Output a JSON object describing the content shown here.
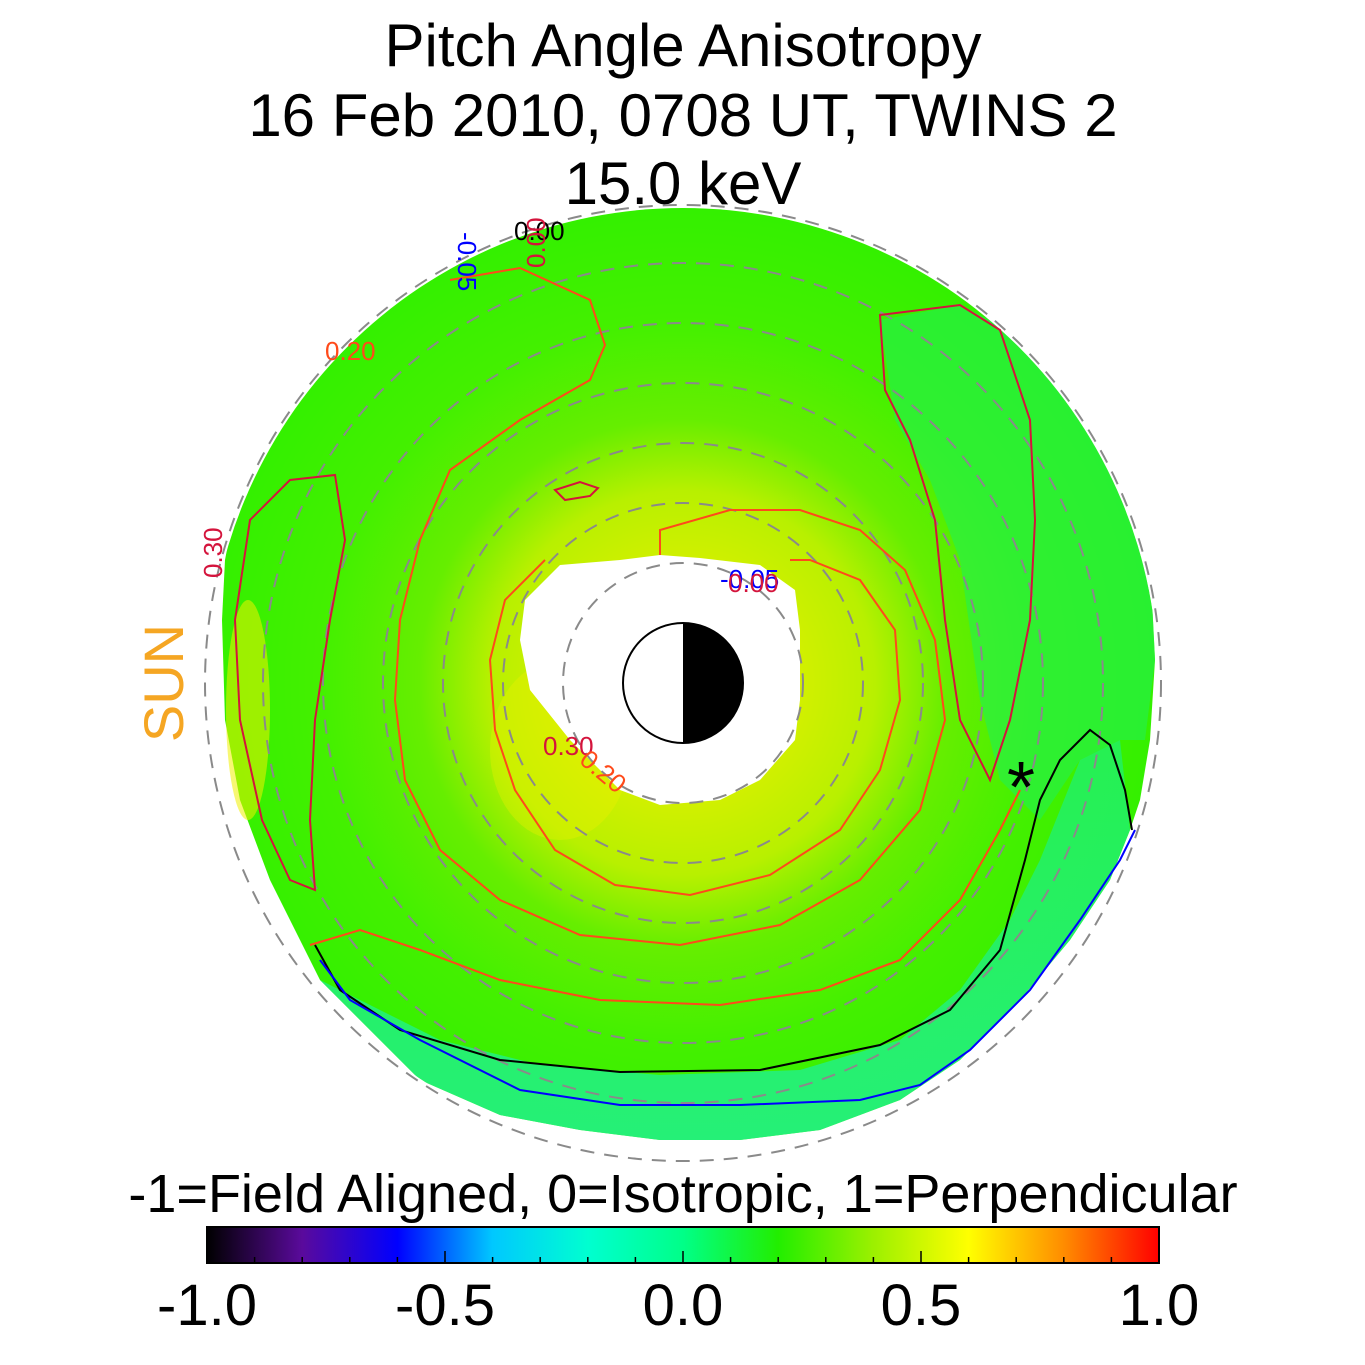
{
  "figure": {
    "title_lines": [
      "Pitch Angle Anisotropy",
      "16 Feb 2010, 0708 UT,  TWINS 2",
      "15.0 keV"
    ],
    "sun_label": "SUN",
    "colorbar_title": "-1=Field Aligned, 0=Isotropic, 1=Perpendicular",
    "spacecraft_marker": "*"
  },
  "chart_data": {
    "type": "heatmap",
    "projection": "polar equatorial map, sun to the left",
    "colorbar": {
      "min": -1.0,
      "max": 1.0,
      "tick_values": [
        -1.0,
        -0.5,
        0.0,
        0.5,
        1.0
      ],
      "tick_labels": [
        "-1.0",
        "-0.5",
        "0.0",
        "0.5",
        "1.0"
      ],
      "colors": [
        "#000000",
        "#5a0a9c",
        "#0000ff",
        "#00c8ff",
        "#00ffd0",
        "#00ff88",
        "#22ee00",
        "#9cf000",
        "#ffff00",
        "#ff8c00",
        "#ff0000"
      ]
    },
    "contours": [
      {
        "level": "0.30",
        "color": "#d4143c"
      },
      {
        "level": "0.20",
        "color": "#ff4a1a"
      },
      {
        "level": "0.00",
        "color": "#000000"
      },
      {
        "level": "-0.05",
        "color": "#0000ff"
      }
    ],
    "contour_labels": [
      {
        "text": "-0.05",
        "color": "#0000ff"
      },
      {
        "text": "0.00",
        "color": "#000000"
      },
      {
        "text": "0.00",
        "color": "#d4143c"
      },
      {
        "text": "0.20",
        "color": "#ff4a1a"
      },
      {
        "text": "0.30",
        "color": "#d4143c"
      },
      {
        "text": "-0.05",
        "color": "#0000ff"
      },
      {
        "text": "0.00",
        "color": "#d4143c"
      },
      {
        "text": "0.30",
        "color": "#d4143c"
      },
      {
        "text": "0.20",
        "color": "#ff4a1a"
      }
    ]
  }
}
